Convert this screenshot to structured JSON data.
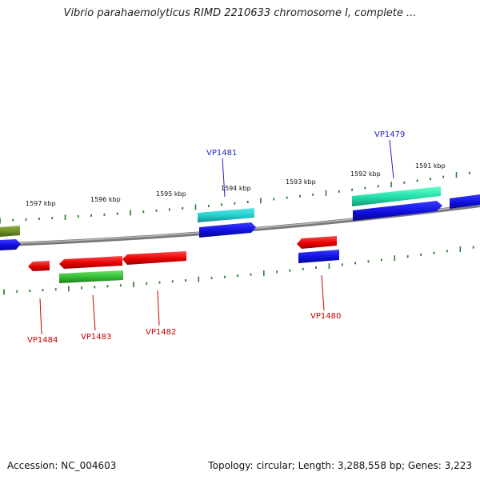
{
  "title": "Vibrio parahaemolyticus RIMD 2210633 chromosome I, complete ...",
  "footer": {
    "accession": "Accession: NC_004603",
    "summary": "Topology: circular; Length: 3,288,558 bp; Genes: 3,223"
  },
  "ticks": [
    {
      "label": "1597 kbp"
    },
    {
      "label": "1596 kbp"
    },
    {
      "label": "1595 kbp"
    },
    {
      "label": "1594 kbp"
    },
    {
      "label": "1593 kbp"
    },
    {
      "label": "1592 kbp"
    },
    {
      "label": "1591 kbp"
    }
  ],
  "genes": [
    {
      "name": "VP1479",
      "color": "#1f1fc4"
    },
    {
      "name": "VP1480",
      "color": "#c40000"
    },
    {
      "name": "VP1481",
      "color": "#1f1fc4"
    },
    {
      "name": "VP1482",
      "color": "#c40000"
    },
    {
      "name": "VP1483",
      "color": "#c40000"
    },
    {
      "name": "VP1484",
      "color": "#c40000"
    }
  ],
  "colors": {
    "backbone": "#7a7a7a",
    "tick": "#2a7a2a",
    "red": "#e60000",
    "blue": "#1010e0",
    "green": "#33bb33",
    "cyan": "#22cccc",
    "teal": "#22ddaa",
    "olive": "#6b8e23"
  }
}
